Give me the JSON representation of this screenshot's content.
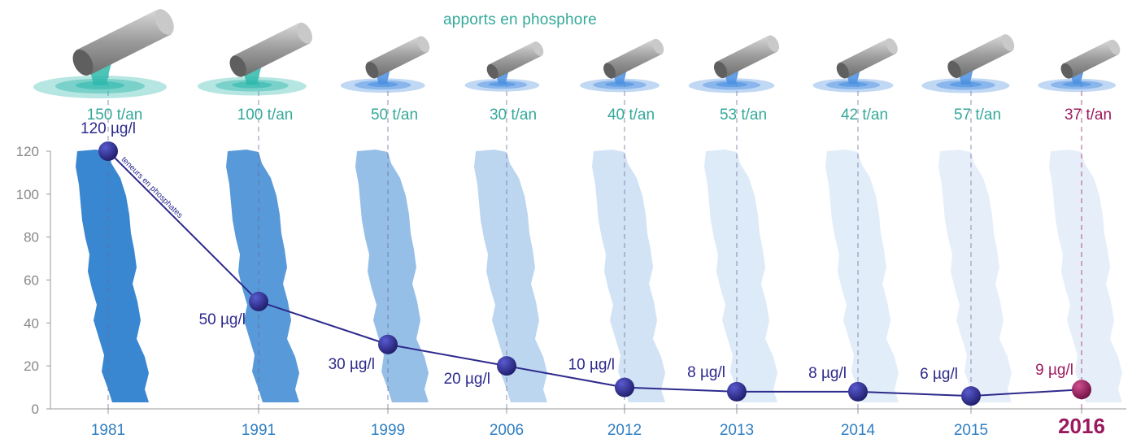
{
  "chart_data": {
    "type": "line",
    "title": "apports en phosphore",
    "series_annotation": "teneurs en phosphates",
    "categories": [
      "1981",
      "1991",
      "1999",
      "2006",
      "2012",
      "2013",
      "2014",
      "2015",
      "2016"
    ],
    "highlight_category": "2016",
    "series": [
      {
        "name": "teneurs en phosphates",
        "unit": "µg/l",
        "values": [
          120,
          50,
          30,
          20,
          10,
          8,
          8,
          6,
          9
        ],
        "labels": [
          "120 µg/l",
          "50 µg/l",
          "30 µg/l",
          "20 µg/l",
          "10 µg/l",
          "8 µg/l",
          "8 µg/l",
          "6 µg/l",
          "9 µg/l"
        ]
      },
      {
        "name": "apports en phosphore",
        "unit": "t/an",
        "values": [
          150,
          100,
          50,
          30,
          40,
          53,
          42,
          57,
          37
        ],
        "labels": [
          "150 t/an",
          "100 t/an",
          "50 t/an",
          "30 t/an",
          "40 t/an",
          "53 t/an",
          "42 t/an",
          "57 t/an",
          "37 t/an"
        ]
      }
    ],
    "y_ticks": [
      "0",
      "20",
      "40",
      "60",
      "80",
      "100",
      "120"
    ],
    "ylim": [
      0,
      120
    ],
    "xlabel": "",
    "ylabel": "",
    "grid": false,
    "colors": {
      "line": "#2d2a8c",
      "marker": "#2a2a7a",
      "highlight": "#9b1a5e",
      "tonnage": "#35a99a",
      "year": "#2f7fc4",
      "axis": "#999999",
      "lake": "#2e7fcf"
    }
  }
}
